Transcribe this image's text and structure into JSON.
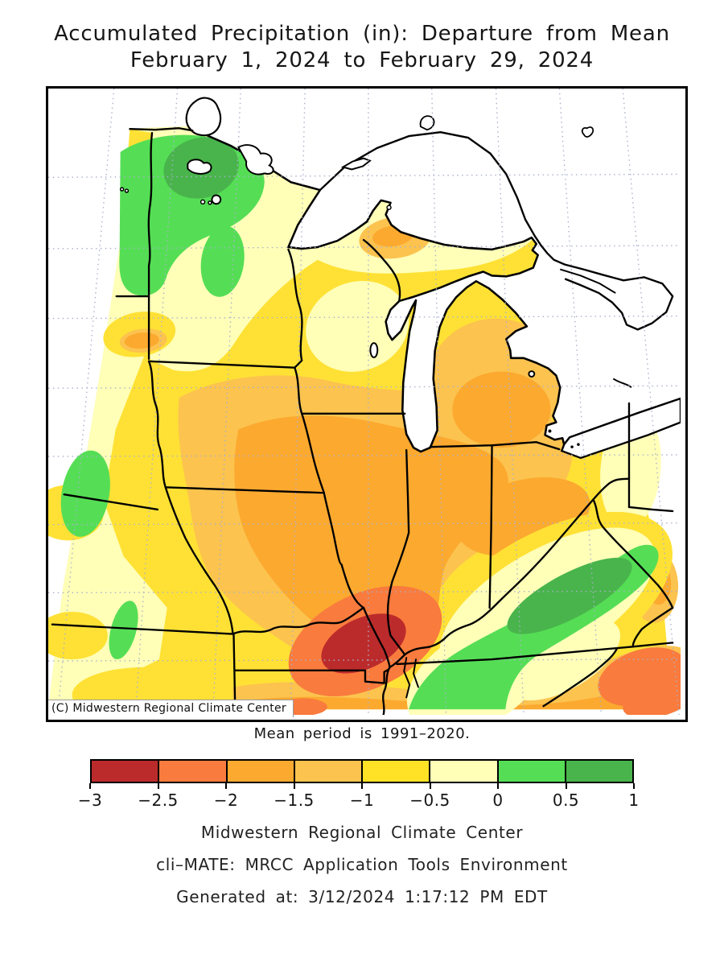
{
  "title": {
    "line1": "Accumulated Precipitation (in): Departure from Mean",
    "line2": "February 1, 2024 to February 29, 2024"
  },
  "map": {
    "copyright": "(C) Midwestern Regional Climate Center",
    "caption": "Mean period is 1991–2020."
  },
  "colorbar": {
    "tick_labels": [
      "−3",
      "−2.5",
      "−2",
      "−1.5",
      "−1",
      "−0.5",
      "0",
      "0.5",
      "1"
    ],
    "segment_colors": [
      "#bc2b2b",
      "#f97b3d",
      "#fca92f",
      "#fcc34f",
      "#ffe226",
      "#ffffb8",
      "#55de55",
      "#49b44c"
    ]
  },
  "footer": {
    "line1": "Midwestern Regional Climate Center",
    "line2": "cli–MATE: MRCC Application Tools Environment",
    "line3": "Generated at: 3/12/2024 1:17:12 PM EDT"
  },
  "palette": {
    "base-yellow": "#ffe135",
    "pale-yellow": "#ffffb8",
    "light-orange": "#fcc34f",
    "orange": "#fca92f",
    "salmon": "#f97b3d",
    "dark-red": "#bc2b2b",
    "green": "#55de55",
    "dark-green": "#49b44c",
    "water": "#ffffff",
    "graticule": "#a8b0cc",
    "line": "#000000"
  }
}
